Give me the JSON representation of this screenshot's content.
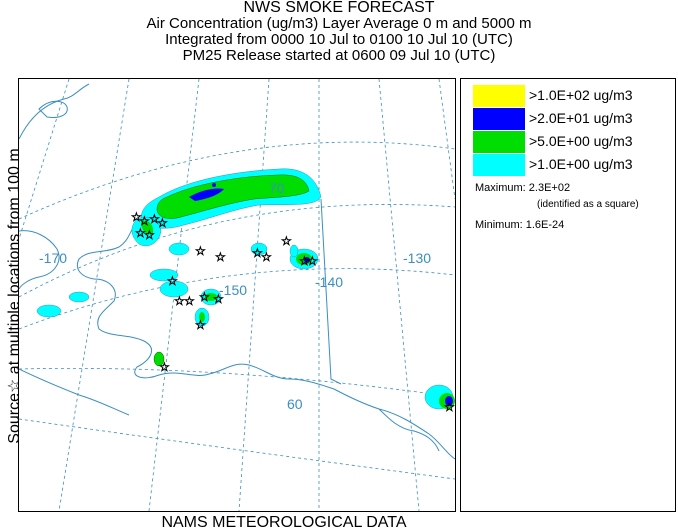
{
  "header": {
    "title": "NWS SMOKE FORECAST",
    "line2": "Air Concentration (ug/m3) Layer Average    0 m and  5000 m",
    "line3": "Integrated from 0000 10 Jul to 0100 10 Jul 10 (UTC)",
    "line4": "PM25 Release started at 0600 09 Jul 10 (UTC)"
  },
  "side_label": "Source☆ at multiple locations   from   100 m",
  "bottom_label": "NAMS METEOROLOGICAL DATA",
  "map": {
    "grid_labels": [
      {
        "id": "lon-170",
        "text": "-170"
      },
      {
        "id": "lon-150",
        "text": "-150"
      },
      {
        "id": "lon-140",
        "text": "-140"
      },
      {
        "id": "lon-130",
        "text": "-130"
      },
      {
        "id": "lat-70",
        "text": "70"
      },
      {
        "id": "lat-60",
        "text": "60"
      }
    ],
    "colors": {
      "land_outline": "#3b8fc1",
      "graticule": "#3b8fc1",
      "source_marker": "#000000"
    }
  },
  "legend": {
    "items": [
      {
        "label": ">1.0E+02 ug/m3",
        "color": "#ffff00"
      },
      {
        "label": ">2.0E+01 ug/m3",
        "color": "#0000ff"
      },
      {
        "label": ">5.0E+00 ug/m3",
        "color": "#00dd00"
      },
      {
        "label": ">1.0E+00 ug/m3",
        "color": "#00ffff"
      }
    ],
    "maximum_label": "Maximum: 2.3E+02",
    "maximum_note": "(identified as a square)",
    "minimum_label": "Minimum: 1.6E-24"
  }
}
